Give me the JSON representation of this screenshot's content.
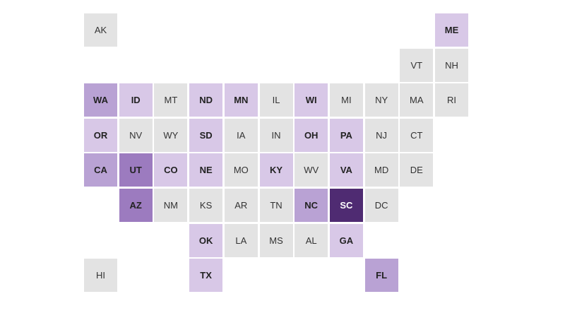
{
  "level_colors": [
    "#e3e3e3",
    "#d8c8e7",
    "#b9a2d4",
    "#9c7bbf",
    "#4f2b72"
  ],
  "states": [
    {
      "abbr": "AK",
      "col": 0,
      "row": 0,
      "level": 0
    },
    {
      "abbr": "ME",
      "col": 10,
      "row": 0,
      "level": 1
    },
    {
      "abbr": "VT",
      "col": 9,
      "row": 1,
      "level": 0
    },
    {
      "abbr": "NH",
      "col": 10,
      "row": 1,
      "level": 0
    },
    {
      "abbr": "WA",
      "col": 0,
      "row": 2,
      "level": 2
    },
    {
      "abbr": "ID",
      "col": 1,
      "row": 2,
      "level": 1
    },
    {
      "abbr": "MT",
      "col": 2,
      "row": 2,
      "level": 0
    },
    {
      "abbr": "ND",
      "col": 3,
      "row": 2,
      "level": 1
    },
    {
      "abbr": "MN",
      "col": 4,
      "row": 2,
      "level": 1
    },
    {
      "abbr": "IL",
      "col": 5,
      "row": 2,
      "level": 0
    },
    {
      "abbr": "WI",
      "col": 6,
      "row": 2,
      "level": 1
    },
    {
      "abbr": "MI",
      "col": 7,
      "row": 2,
      "level": 0
    },
    {
      "abbr": "NY",
      "col": 8,
      "row": 2,
      "level": 0
    },
    {
      "abbr": "MA",
      "col": 9,
      "row": 2,
      "level": 0
    },
    {
      "abbr": "RI",
      "col": 10,
      "row": 2,
      "level": 0
    },
    {
      "abbr": "OR",
      "col": 0,
      "row": 3,
      "level": 1
    },
    {
      "abbr": "NV",
      "col": 1,
      "row": 3,
      "level": 0
    },
    {
      "abbr": "WY",
      "col": 2,
      "row": 3,
      "level": 0
    },
    {
      "abbr": "SD",
      "col": 3,
      "row": 3,
      "level": 1
    },
    {
      "abbr": "IA",
      "col": 4,
      "row": 3,
      "level": 0
    },
    {
      "abbr": "IN",
      "col": 5,
      "row": 3,
      "level": 0
    },
    {
      "abbr": "OH",
      "col": 6,
      "row": 3,
      "level": 1
    },
    {
      "abbr": "PA",
      "col": 7,
      "row": 3,
      "level": 1
    },
    {
      "abbr": "NJ",
      "col": 8,
      "row": 3,
      "level": 0
    },
    {
      "abbr": "CT",
      "col": 9,
      "row": 3,
      "level": 0
    },
    {
      "abbr": "CA",
      "col": 0,
      "row": 4,
      "level": 2
    },
    {
      "abbr": "UT",
      "col": 1,
      "row": 4,
      "level": 3
    },
    {
      "abbr": "CO",
      "col": 2,
      "row": 4,
      "level": 1
    },
    {
      "abbr": "NE",
      "col": 3,
      "row": 4,
      "level": 1
    },
    {
      "abbr": "MO",
      "col": 4,
      "row": 4,
      "level": 0
    },
    {
      "abbr": "KY",
      "col": 5,
      "row": 4,
      "level": 1
    },
    {
      "abbr": "WV",
      "col": 6,
      "row": 4,
      "level": 0
    },
    {
      "abbr": "VA",
      "col": 7,
      "row": 4,
      "level": 1
    },
    {
      "abbr": "MD",
      "col": 8,
      "row": 4,
      "level": 0
    },
    {
      "abbr": "DE",
      "col": 9,
      "row": 4,
      "level": 0
    },
    {
      "abbr": "AZ",
      "col": 1,
      "row": 5,
      "level": 3
    },
    {
      "abbr": "NM",
      "col": 2,
      "row": 5,
      "level": 0
    },
    {
      "abbr": "KS",
      "col": 3,
      "row": 5,
      "level": 0
    },
    {
      "abbr": "AR",
      "col": 4,
      "row": 5,
      "level": 0
    },
    {
      "abbr": "TN",
      "col": 5,
      "row": 5,
      "level": 0
    },
    {
      "abbr": "NC",
      "col": 6,
      "row": 5,
      "level": 2
    },
    {
      "abbr": "SC",
      "col": 7,
      "row": 5,
      "level": 4
    },
    {
      "abbr": "DC",
      "col": 8,
      "row": 5,
      "level": 0
    },
    {
      "abbr": "OK",
      "col": 3,
      "row": 6,
      "level": 1
    },
    {
      "abbr": "LA",
      "col": 4,
      "row": 6,
      "level": 0
    },
    {
      "abbr": "MS",
      "col": 5,
      "row": 6,
      "level": 0
    },
    {
      "abbr": "AL",
      "col": 6,
      "row": 6,
      "level": 0
    },
    {
      "abbr": "GA",
      "col": 7,
      "row": 6,
      "level": 1
    },
    {
      "abbr": "HI",
      "col": 0,
      "row": 7,
      "level": 0
    },
    {
      "abbr": "TX",
      "col": 3,
      "row": 7,
      "level": 1
    },
    {
      "abbr": "FL",
      "col": 8,
      "row": 7,
      "level": 2
    }
  ]
}
